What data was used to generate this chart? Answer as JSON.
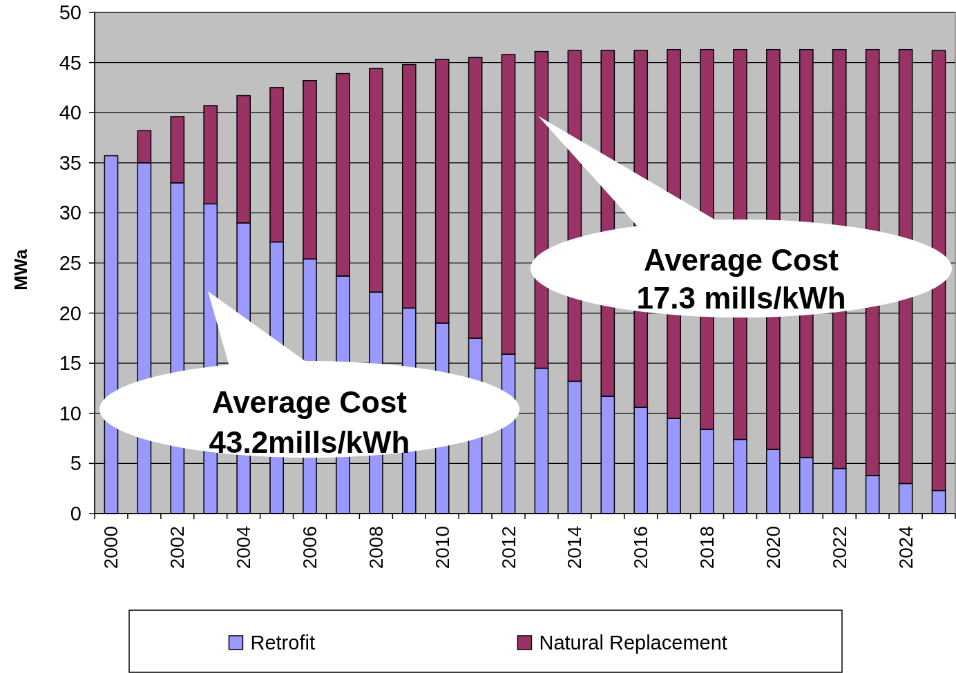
{
  "chart_data": {
    "type": "bar",
    "stacked": true,
    "categories": [
      "2000",
      null,
      "2002",
      null,
      "2004",
      null,
      "2006",
      null,
      "2008",
      null,
      "2010",
      null,
      "2012",
      null,
      "2014",
      null,
      "2016",
      null,
      "2018",
      null,
      "2020",
      null,
      "2022",
      null,
      "2024",
      null
    ],
    "series": [
      {
        "name": "Retrofit",
        "color": "#9999ff",
        "values": [
          35.7,
          35.0,
          33.0,
          30.9,
          29.0,
          27.1,
          25.4,
          23.7,
          22.1,
          20.5,
          19.0,
          17.5,
          15.9,
          14.5,
          13.2,
          11.7,
          10.6,
          9.5,
          8.4,
          7.4,
          6.4,
          5.6,
          4.5,
          3.8,
          3.0,
          2.3
        ]
      },
      {
        "name": "Natural Replacement",
        "color": "#993366",
        "values": [
          null,
          3.2,
          6.6,
          9.8,
          12.7,
          15.4,
          17.8,
          20.2,
          22.3,
          24.3,
          26.3,
          28.0,
          29.9,
          31.6,
          33.0,
          34.5,
          35.6,
          36.8,
          37.9,
          38.9,
          39.9,
          40.7,
          41.8,
          42.5,
          43.3,
          43.9
        ]
      }
    ],
    "ylabel": "MWa",
    "ylim": [
      0,
      50
    ],
    "yticks": [
      0,
      5,
      10,
      15,
      20,
      25,
      30,
      35,
      40,
      45,
      50
    ],
    "grid": "y",
    "legend": "bottom",
    "annotations": [
      "Average Cost\n43.2mills/kWh",
      "Average Cost\n17.3 mills/kWh"
    ]
  }
}
